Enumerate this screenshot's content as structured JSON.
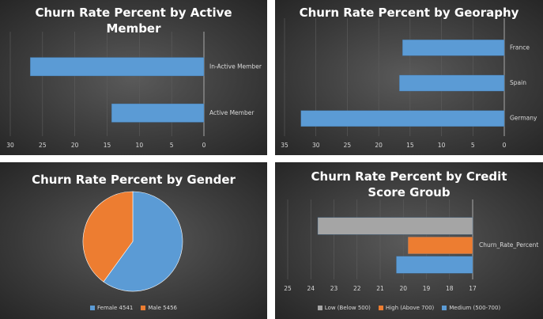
{
  "chart_data": [
    {
      "type": "bar",
      "orientation": "horizontal",
      "title": "Churn Rate Percent by Active Member",
      "categories": [
        "In-Active Member",
        "Active Member"
      ],
      "values": [
        26.9,
        14.3
      ],
      "color": "#5b9bd5",
      "xlim": [
        30,
        0
      ],
      "xticks": [
        30,
        25,
        20,
        15,
        10,
        5,
        0
      ],
      "grid": true
    },
    {
      "type": "bar",
      "orientation": "horizontal",
      "title": "Churn Rate Percent by Georaphy",
      "categories": [
        "France",
        "Spain",
        "Germany"
      ],
      "values": [
        16.2,
        16.7,
        32.4
      ],
      "color": "#5b9bd5",
      "xlim": [
        35,
        0
      ],
      "xticks": [
        35,
        30,
        25,
        20,
        15,
        10,
        5,
        0
      ],
      "grid": true
    },
    {
      "type": "pie",
      "title": "Churn Rate Percent by Gender",
      "categories": [
        "Female 4541",
        "Male 5456"
      ],
      "values": [
        60,
        40
      ],
      "colors": [
        "#5b9bd5",
        "#ed7d31"
      ]
    },
    {
      "type": "bar",
      "orientation": "horizontal",
      "title": "Churn Rate Percent by Credit Score Groub",
      "categories": [
        "Churn_Rate_Percent"
      ],
      "series": [
        {
          "name": "Low (Below 500)",
          "color": "#a5a5a5",
          "values": [
            23.7
          ]
        },
        {
          "name": "High (Above 700)",
          "color": "#ed7d31",
          "values": [
            19.8
          ]
        },
        {
          "name": "Medium (500-700)",
          "color": "#5b9bd5",
          "values": [
            20.3
          ]
        }
      ],
      "xlim": [
        25,
        17
      ],
      "xticks": [
        25,
        24,
        23,
        22,
        21,
        20,
        19,
        18,
        17
      ],
      "grid": true
    }
  ]
}
